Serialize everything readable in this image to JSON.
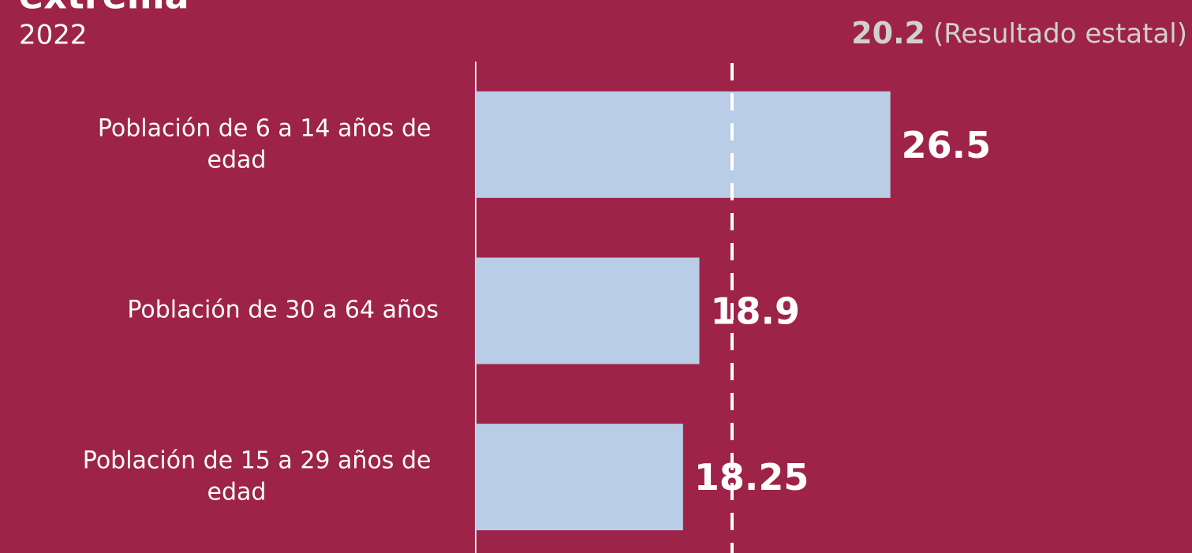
{
  "chart_data": {
    "type": "bar",
    "orientation": "horizontal",
    "title": "extrema",
    "subtitle": "2022",
    "categories": [
      "Población de 6 a 14 años de edad",
      "Población de 30 a 64 años",
      "Población de 15 a 29 años de edad"
    ],
    "values": [
      26.5,
      18.9,
      18.25
    ],
    "color": "#b9cde6",
    "xlim": [
      10,
      38.5
    ],
    "reference": {
      "value": 20.2,
      "label": "(Resultado estatal)"
    }
  }
}
